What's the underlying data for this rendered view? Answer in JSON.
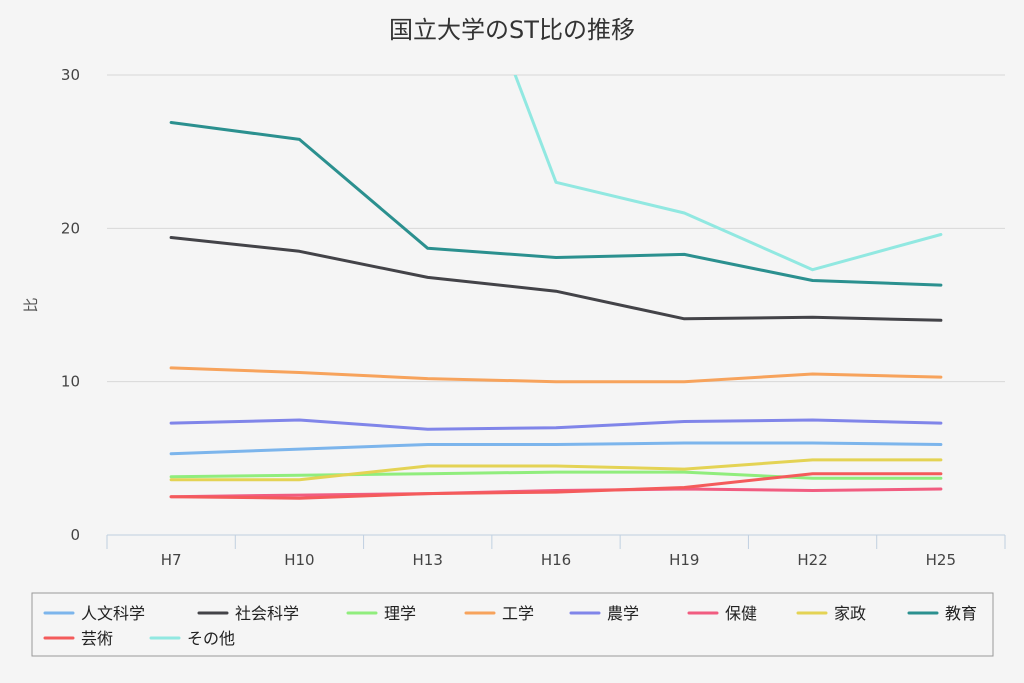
{
  "chart_data": {
    "type": "line",
    "title": "国立大学のST比の推移",
    "xlabel": "",
    "ylabel": "比",
    "categories": [
      "H7",
      "H10",
      "H13",
      "H16",
      "H19",
      "H22",
      "H25"
    ],
    "ylim": [
      0,
      30
    ],
    "yticks": [
      0,
      10,
      20,
      30
    ],
    "grid": true,
    "legend_position": "bottom",
    "series": [
      {
        "name": "人文科学",
        "color": "#7cb5ec",
        "values": [
          5.3,
          5.6,
          5.9,
          5.9,
          6.0,
          6.0,
          5.9
        ]
      },
      {
        "name": "社会科学",
        "color": "#434348",
        "values": [
          19.4,
          18.5,
          16.8,
          15.9,
          14.1,
          14.2,
          14.0
        ]
      },
      {
        "name": "理学",
        "color": "#90ed7d",
        "values": [
          3.8,
          3.9,
          4.0,
          4.1,
          4.1,
          3.7,
          3.7
        ]
      },
      {
        "name": "工学",
        "color": "#f7a35c",
        "values": [
          10.9,
          10.6,
          10.2,
          10.0,
          10.0,
          10.5,
          10.3
        ]
      },
      {
        "name": "農学",
        "color": "#8085e9",
        "values": [
          7.3,
          7.5,
          6.9,
          7.0,
          7.4,
          7.5,
          7.3
        ]
      },
      {
        "name": "保健",
        "color": "#f15c80",
        "values": [
          2.5,
          2.6,
          2.7,
          2.9,
          3.0,
          2.9,
          3.0
        ]
      },
      {
        "name": "家政",
        "color": "#e4d354",
        "values": [
          3.6,
          3.6,
          4.5,
          4.5,
          4.3,
          4.9,
          4.9
        ]
      },
      {
        "name": "教育",
        "color": "#2b908f",
        "values": [
          26.9,
          25.8,
          18.7,
          18.1,
          18.3,
          16.6,
          16.3
        ]
      },
      {
        "name": "芸術",
        "color": "#f45b5b",
        "values": [
          2.5,
          2.4,
          2.7,
          2.8,
          3.1,
          4.0,
          4.0
        ]
      },
      {
        "name": "その他",
        "color": "#91e8e1",
        "values": [
          null,
          null,
          45.0,
          23.0,
          21.0,
          17.3,
          19.6
        ]
      }
    ]
  }
}
